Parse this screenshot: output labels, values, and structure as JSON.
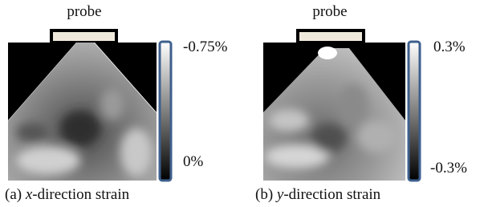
{
  "panels": [
    {
      "probe_label": "probe",
      "colorbar": {
        "top": "-0.75%",
        "bottom": "0%"
      },
      "caption": {
        "prefix": "(a) ",
        "variable": "x",
        "suffix": "-direction strain"
      }
    },
    {
      "probe_label": "probe",
      "colorbar": {
        "top": "0.3%",
        "bottom": "-0.3%"
      },
      "caption": {
        "prefix": "(b) ",
        "variable": "y",
        "suffix": "-direction strain"
      }
    }
  ]
}
